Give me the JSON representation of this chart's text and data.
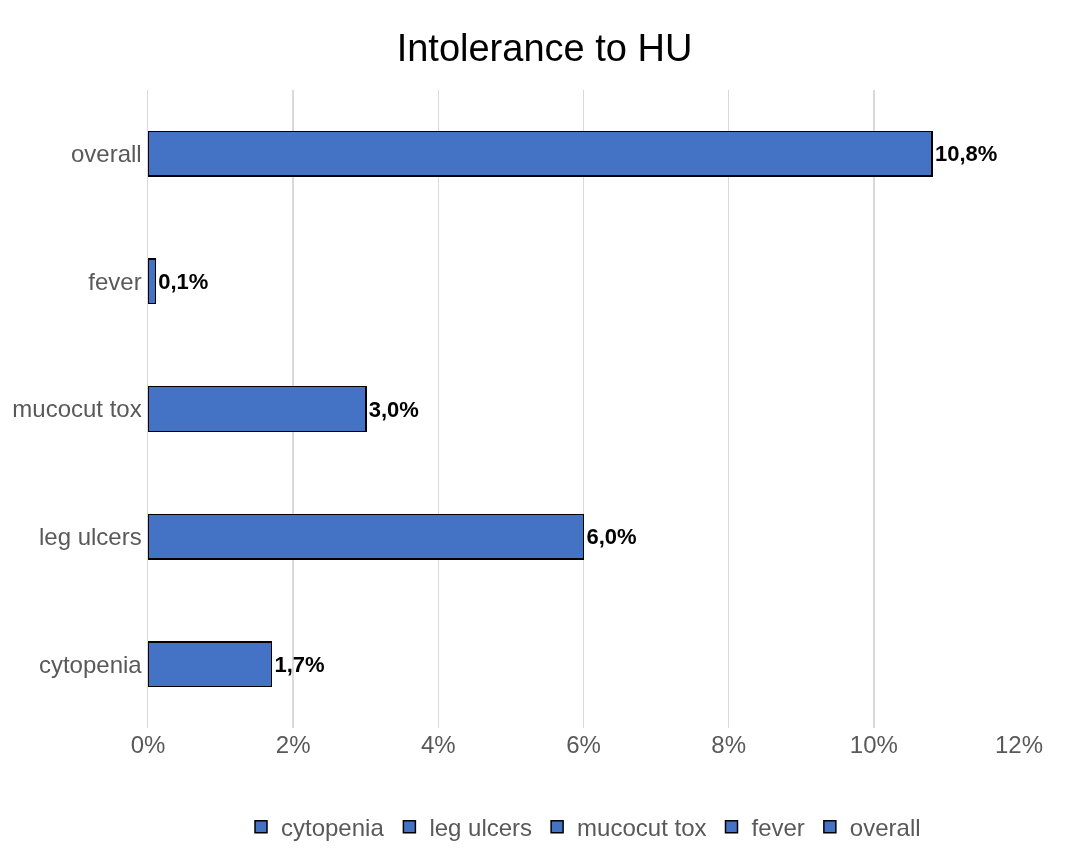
{
  "chart_data": {
    "type": "bar",
    "title": "Intolerance to HU",
    "orientation": "horizontal",
    "stacked": true,
    "categories": [
      "overall",
      "fever",
      "mucocut tox",
      "leg ulcers",
      "cytopenia"
    ],
    "series": [
      {
        "name": "cytopenia",
        "color": "#4472c4",
        "values": [
          null,
          null,
          null,
          null,
          1.7
        ],
        "value_labels": [
          null,
          null,
          null,
          null,
          "1,7%"
        ]
      },
      {
        "name": "leg ulcers",
        "color": "#4472c4",
        "values": [
          null,
          null,
          null,
          6.0,
          null
        ],
        "value_labels": [
          null,
          null,
          null,
          "6,0%",
          null
        ]
      },
      {
        "name": "mucocut tox",
        "color": "#4472c4",
        "values": [
          null,
          null,
          3.0,
          null,
          null
        ],
        "value_labels": [
          null,
          null,
          "3,0%",
          null,
          null
        ]
      },
      {
        "name": "fever",
        "color": "#4472c4",
        "values": [
          null,
          0.1,
          null,
          null,
          null
        ],
        "value_labels": [
          null,
          "0,1%",
          null,
          null,
          null
        ]
      },
      {
        "name": "overall",
        "color": "#4472c4",
        "values": [
          10.8,
          null,
          null,
          null,
          null
        ],
        "value_labels": [
          "10,8%",
          null,
          null,
          null,
          null
        ]
      }
    ],
    "xlim": [
      0,
      12
    ],
    "xticks": [
      {
        "value": 0,
        "label": "0%"
      },
      {
        "value": 2,
        "label": "2%"
      },
      {
        "value": 4,
        "label": "4%"
      },
      {
        "value": 6,
        "label": "6%"
      },
      {
        "value": 8,
        "label": "8%"
      },
      {
        "value": 10,
        "label": "10%"
      },
      {
        "value": 12,
        "label": "12%"
      }
    ],
    "grid": "x",
    "legend": "bottom"
  }
}
